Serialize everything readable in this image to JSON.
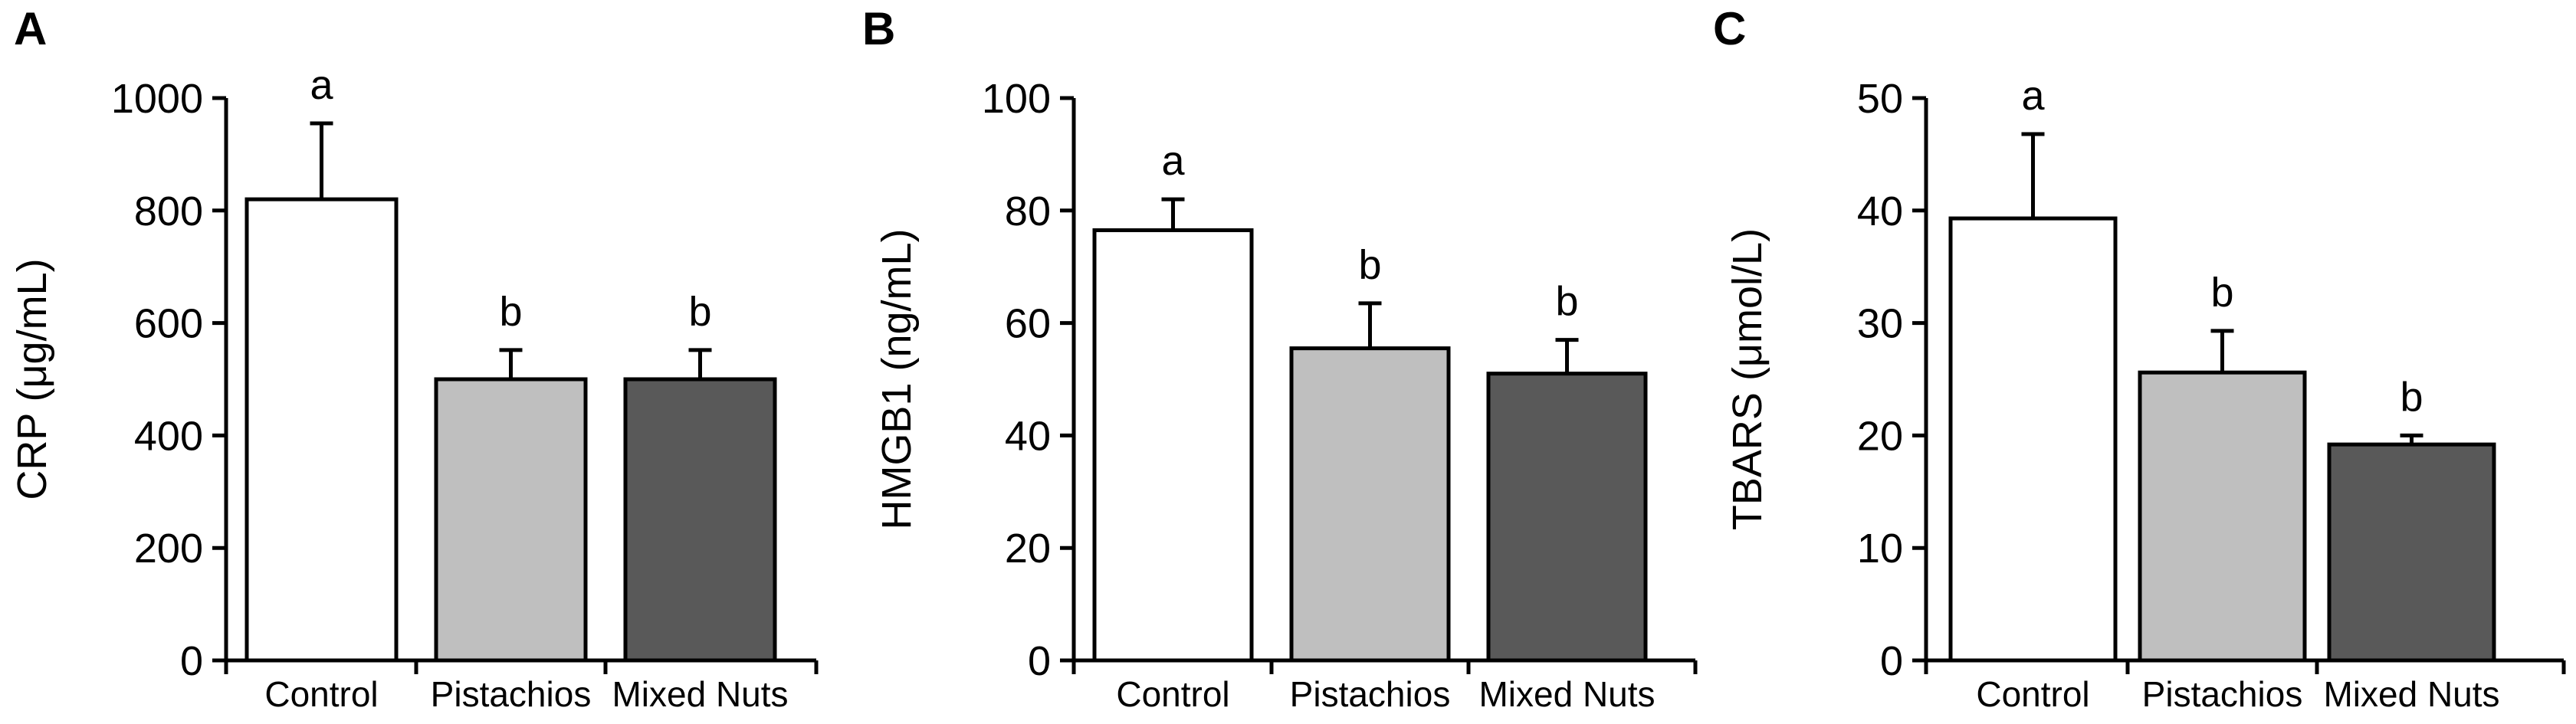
{
  "chart_data": [
    {
      "panel_label": "A",
      "type": "bar",
      "categories": [
        "Control",
        "Pistachios",
        "Mixed Nuts"
      ],
      "values": [
        820,
        500,
        500
      ],
      "errors": [
        135,
        52,
        52
      ],
      "significance": [
        "a",
        "b",
        "b"
      ],
      "colors": [
        "#ffffff",
        "#bfbfbf",
        "#595959"
      ],
      "ylabel": "CRP (μg/mL)",
      "xlabel": "",
      "ylim": [
        0,
        1000
      ],
      "yticks": [
        0,
        200,
        400,
        600,
        800,
        1000
      ]
    },
    {
      "panel_label": "B",
      "type": "bar",
      "categories": [
        "Control",
        "Pistachios",
        "Mixed Nuts"
      ],
      "values": [
        76.5,
        55.5,
        51
      ],
      "errors": [
        5.5,
        8,
        6
      ],
      "significance": [
        "a",
        "b",
        "b"
      ],
      "colors": [
        "#ffffff",
        "#bfbfbf",
        "#595959"
      ],
      "ylabel": "HMGB1 (ng/mL)",
      "xlabel": "",
      "ylim": [
        0,
        100
      ],
      "yticks": [
        0,
        20,
        40,
        60,
        80,
        100
      ]
    },
    {
      "panel_label": "C",
      "type": "bar",
      "categories": [
        "Control",
        "Pistachios",
        "Mixed Nuts"
      ],
      "values": [
        39.3,
        25.6,
        19.2
      ],
      "errors": [
        7.5,
        3.7,
        0.8
      ],
      "significance": [
        "a",
        "b",
        "b"
      ],
      "colors": [
        "#ffffff",
        "#bfbfbf",
        "#595959"
      ],
      "ylabel": "TBARS (μmol/L)",
      "xlabel": "",
      "ylim": [
        0,
        50
      ],
      "yticks": [
        0,
        10,
        20,
        30,
        40,
        50
      ]
    }
  ]
}
